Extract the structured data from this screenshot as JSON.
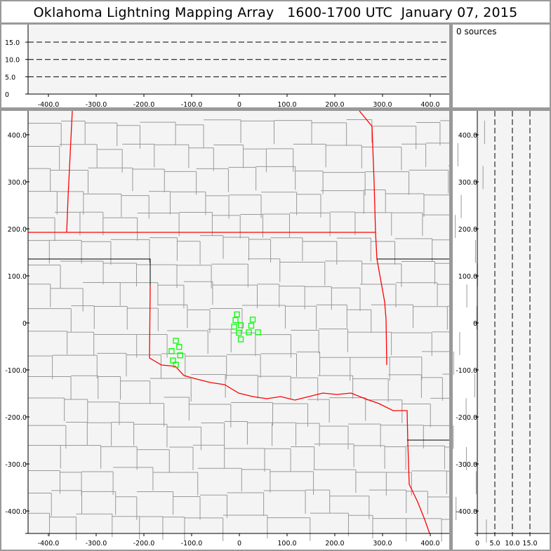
{
  "title": "Oklahoma Lightning Mapping Array   1600-1700 UTC  January 07, 2015",
  "source_count_label": "0 sources",
  "colors": {
    "panel_bg": "#f4f4f4",
    "frame": "#999999",
    "state_border": "#ff0000",
    "county_line": "#999999",
    "station": "#00ff00"
  },
  "chart_data": [
    {
      "type": "line",
      "name": "altitude-vs-x",
      "x_ticks": [
        "-400.0",
        "-300.0",
        "-200.0",
        "-100.0",
        "0",
        "100.0",
        "200.0",
        "300.0",
        "400.0"
      ],
      "y_ticks": [
        "0",
        "5.0",
        "10.0",
        "15.0"
      ],
      "xlim": [
        -450,
        450
      ],
      "ylim": [
        0,
        20
      ],
      "grid": "dashed horizontal at 5, 10, 15",
      "series": []
    },
    {
      "type": "scatter",
      "name": "plan-view-map",
      "x_ticks": [
        "-400.0",
        "-300.0",
        "-200.0",
        "-100.0",
        "0",
        "100.0",
        "200.0",
        "300.0",
        "400.0"
      ],
      "y_ticks": [
        "400.0",
        "300.0",
        "200.0",
        "100.0",
        "0",
        "-100.0",
        "-200.0",
        "-300.0",
        "-400.0"
      ],
      "xlim": [
        -445,
        440
      ],
      "ylim": [
        -450,
        450
      ],
      "stations": [
        [
          -5,
          18
        ],
        [
          -8,
          6
        ],
        [
          -11,
          -8
        ],
        [
          3,
          -5
        ],
        [
          -1,
          -21
        ],
        [
          3,
          -35
        ],
        [
          28,
          7
        ],
        [
          25,
          -6
        ],
        [
          20,
          -20
        ],
        [
          39,
          -20
        ],
        [
          -133,
          -38
        ],
        [
          -126,
          -51
        ],
        [
          -142,
          -60
        ],
        [
          -124,
          -69
        ],
        [
          -139,
          -80
        ],
        [
          -133,
          -89
        ]
      ]
    },
    {
      "type": "line",
      "name": "altitude-vs-y",
      "x_ticks": [
        "0",
        "5.0",
        "10.0",
        "15.0"
      ],
      "y_ticks": [
        "400.0",
        "300.0",
        "200.0",
        "100.0",
        "0",
        "-100.0",
        "-200.0",
        "-300.0",
        "-400.0"
      ],
      "xlim": [
        0,
        20
      ],
      "ylim": [
        -450,
        450
      ],
      "grid": "dashed vertical at 5, 10, 15",
      "series": []
    }
  ]
}
